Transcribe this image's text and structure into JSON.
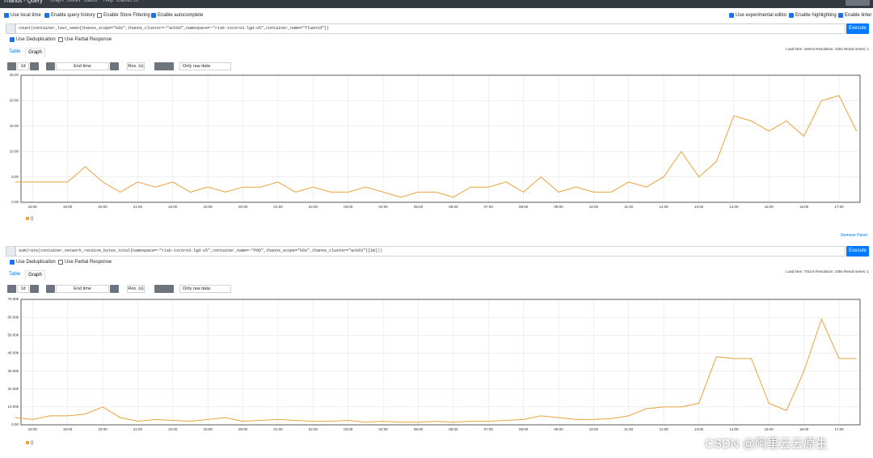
{
  "navbar": {
    "brand": "Thanos - Query",
    "links": [
      "Graph",
      "Stores",
      "Status",
      "Help",
      "Classic UI"
    ]
  },
  "options_left": [
    "Use local time",
    "Enable query history",
    "Enable Store Filtering",
    "Enable autocomplete"
  ],
  "options_right": [
    "Use experimental editor",
    "Enable highlighting",
    "Enable linter"
  ],
  "panels": [
    {
      "query": "count(container_last_seen{thanos_scope=\"k8s\",thanos_cluster=~\"ack03\",namespace=~\"risk-txcore3-lgd-v5\",container_name=\"fluentd\"})",
      "execute": "Execute",
      "options": [
        "Use Deduplication",
        "Use Partial Response"
      ],
      "tabs": [
        "Table",
        "Graph"
      ],
      "stats": "Load time: 446ms   Resolution: 345s   Result series: 1",
      "range": "1d",
      "end_time": "End time",
      "resolution": "Res. (s)",
      "raw_data": "Only raw data"
    },
    {
      "query": "sum(rate(container_network_receive_bytes_total{namespace=~\"risk-txcore3-lgd-v5\",container_name=~\"POD\",thanos_scope=\"k8s\",thanos_cluster=\"ack03\"}[1m]))",
      "execute": "Execute",
      "options": [
        "Use Deduplication",
        "Use Partial Response"
      ],
      "tabs": [
        "Table",
        "Graph"
      ],
      "stats": "Load time: 701ms   Resolution: 345s   Result series: 1",
      "range": "1d",
      "end_time": "End time",
      "resolution": "Res. (s)",
      "raw_data": "Only raw data"
    }
  ],
  "remove_panel": "Remove Panel",
  "watermark": "CSDN @阿里云云原生",
  "chart_data": [
    {
      "type": "line",
      "grid": true,
      "x": [
        0.5,
        1,
        1.5,
        2,
        2.5,
        3,
        3.5,
        4,
        4.5,
        5,
        5.5,
        6,
        6.5,
        7,
        7.5,
        8,
        8.5,
        9,
        9.5,
        10,
        10.5,
        11,
        11.5,
        12,
        12.5,
        13,
        13.5,
        14,
        14.5,
        15,
        15.5,
        16,
        16.5,
        17,
        17.5,
        18,
        18.5,
        19,
        19.5,
        20,
        20.5,
        21,
        21.5,
        22,
        22.5,
        23,
        23.5,
        24,
        24.5
      ],
      "series": [
        {
          "name": "{}",
          "color": "#e8a33d",
          "values": [
            4,
            4,
            4,
            4,
            7,
            4,
            2,
            4,
            3,
            4,
            2,
            3,
            2,
            3,
            3,
            4,
            2,
            3,
            2,
            2,
            3,
            2,
            1,
            2,
            2,
            1,
            3,
            3,
            4,
            2,
            5,
            2,
            3,
            2,
            2,
            4,
            3,
            5,
            10,
            5,
            8,
            17,
            16,
            14,
            16,
            13,
            20,
            21,
            14
          ]
        }
      ],
      "xlim": [
        0.67,
        24.6
      ],
      "xticks": [
        {
          "value": 1,
          "label": "18:00"
        },
        {
          "value": 2,
          "label": "19:00"
        },
        {
          "value": 3,
          "label": "20:00"
        },
        {
          "value": 4,
          "label": "21:00"
        },
        {
          "value": 5,
          "label": "22:00"
        },
        {
          "value": 6,
          "label": "23:00"
        },
        {
          "value": 7,
          "label": "00:00"
        },
        {
          "value": 8,
          "label": "01:00"
        },
        {
          "value": 9,
          "label": "02:00"
        },
        {
          "value": 10,
          "label": "03:00"
        },
        {
          "value": 11,
          "label": "04:00"
        },
        {
          "value": 12,
          "label": "05:00"
        },
        {
          "value": 13,
          "label": "06:00"
        },
        {
          "value": 14,
          "label": "07:00"
        },
        {
          "value": 15,
          "label": "08:00"
        },
        {
          "value": 16,
          "label": "09:00"
        },
        {
          "value": 17,
          "label": "10:00"
        },
        {
          "value": 18,
          "label": "11:00"
        },
        {
          "value": 19,
          "label": "12:00"
        },
        {
          "value": 20,
          "label": "13:00"
        },
        {
          "value": 21,
          "label": "14:00"
        },
        {
          "value": 22,
          "label": "15:00"
        },
        {
          "value": 23,
          "label": "16:00"
        },
        {
          "value": 24,
          "label": "17:00"
        }
      ],
      "ylim": [
        0,
        25
      ],
      "yticks": [
        {
          "value": 0,
          "label": "0.00"
        },
        {
          "value": 5,
          "label": "5.00"
        },
        {
          "value": 10,
          "label": "10.00"
        },
        {
          "value": 15,
          "label": "15.00"
        },
        {
          "value": 20,
          "label": "20.00"
        },
        {
          "value": 25,
          "label": "25.00"
        }
      ]
    },
    {
      "type": "line",
      "grid": true,
      "x": [
        0.5,
        1,
        1.5,
        2,
        2.5,
        3,
        3.5,
        4,
        4.5,
        5,
        5.5,
        6,
        6.5,
        7,
        7.5,
        8,
        8.5,
        9,
        9.5,
        10,
        10.5,
        11,
        11.5,
        12,
        12.5,
        13,
        13.5,
        14,
        14.5,
        15,
        15.5,
        16,
        16.5,
        17,
        17.5,
        18,
        18.5,
        19,
        19.5,
        20,
        20.5,
        21,
        21.5,
        22,
        22.5,
        23,
        23.5,
        24,
        24.5
      ],
      "series": [
        {
          "name": "{}",
          "color": "#e8a33d",
          "values": [
            4000,
            3000,
            5000,
            5000,
            6000,
            10000,
            4000,
            2000,
            3000,
            2500,
            2000,
            3000,
            4000,
            2000,
            2500,
            3000,
            2500,
            2000,
            2000,
            2500,
            1500,
            2000,
            1500,
            1500,
            2000,
            1500,
            2000,
            2000,
            2500,
            3000,
            5000,
            4000,
            3000,
            3000,
            3500,
            5000,
            9000,
            10000,
            10000,
            12000,
            38000,
            37000,
            37000,
            12000,
            8000,
            30000,
            59000,
            37000,
            37000
          ]
        }
      ],
      "xlim": [
        0.67,
        24.6
      ],
      "xticks": [
        {
          "value": 1,
          "label": "18:00"
        },
        {
          "value": 2,
          "label": "19:00"
        },
        {
          "value": 3,
          "label": "20:00"
        },
        {
          "value": 4,
          "label": "21:00"
        },
        {
          "value": 5,
          "label": "22:00"
        },
        {
          "value": 6,
          "label": "23:00"
        },
        {
          "value": 7,
          "label": "00:00"
        },
        {
          "value": 8,
          "label": "01:00"
        },
        {
          "value": 9,
          "label": "02:00"
        },
        {
          "value": 10,
          "label": "03:00"
        },
        {
          "value": 11,
          "label": "04:00"
        },
        {
          "value": 12,
          "label": "05:00"
        },
        {
          "value": 13,
          "label": "06:00"
        },
        {
          "value": 14,
          "label": "07:00"
        },
        {
          "value": 15,
          "label": "08:00"
        },
        {
          "value": 16,
          "label": "09:00"
        },
        {
          "value": 17,
          "label": "10:00"
        },
        {
          "value": 18,
          "label": "11:00"
        },
        {
          "value": 19,
          "label": "12:00"
        },
        {
          "value": 20,
          "label": "13:00"
        },
        {
          "value": 21,
          "label": "14:00"
        },
        {
          "value": 22,
          "label": "15:00"
        },
        {
          "value": 23,
          "label": "16:00"
        },
        {
          "value": 24,
          "label": "17:00"
        }
      ],
      "ylim": [
        0,
        70000
      ],
      "yticks": [
        {
          "value": 0,
          "label": "0.00"
        },
        {
          "value": 10000,
          "label": "10.00k"
        },
        {
          "value": 20000,
          "label": "20.00k"
        },
        {
          "value": 30000,
          "label": "30.00k"
        },
        {
          "value": 40000,
          "label": "40.00k"
        },
        {
          "value": 50000,
          "label": "50.00k"
        },
        {
          "value": 60000,
          "label": "60.00k"
        },
        {
          "value": 70000,
          "label": "70.00k"
        }
      ]
    }
  ]
}
